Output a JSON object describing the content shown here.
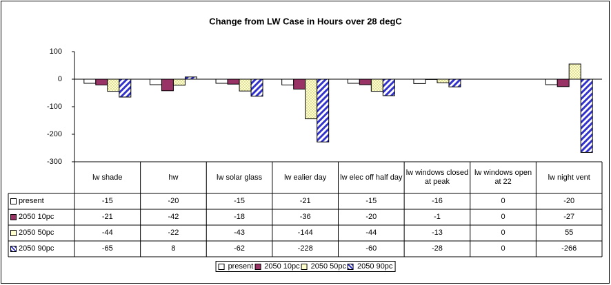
{
  "chart_data": {
    "type": "bar",
    "title": "Change from LW Case in Hours over 28 degC",
    "categories": [
      "lw shade",
      "hw",
      "lw solar glass",
      "lw ealier day",
      "lw elec off half day",
      "lw windows closed at peak",
      "lw windows open at 22",
      "lw night vent"
    ],
    "series": [
      {
        "name": "present",
        "color": "#ffffff",
        "pattern": "solid",
        "values": [
          -15,
          -20,
          -15,
          -21,
          -15,
          -16,
          0,
          -20
        ]
      },
      {
        "name": "2050 10pc",
        "color": "#993366",
        "pattern": "solid",
        "values": [
          -21,
          -42,
          -18,
          -36,
          -20,
          -1,
          0,
          -27
        ]
      },
      {
        "name": "2050 50pc",
        "color": "#ffffcc",
        "pattern": "dots",
        "values": [
          -44,
          -22,
          -43,
          -144,
          -44,
          -13,
          0,
          55
        ]
      },
      {
        "name": "2050 90pc",
        "color": "#3333cc",
        "pattern": "stripes",
        "values": [
          -65,
          8,
          -62,
          -228,
          -60,
          -28,
          0,
          -266
        ]
      }
    ],
    "ylim": [
      -300,
      100
    ],
    "yticks": [
      -300,
      -200,
      -100,
      0,
      100
    ],
    "grid": false,
    "legend": "bottom",
    "data_table": true
  }
}
